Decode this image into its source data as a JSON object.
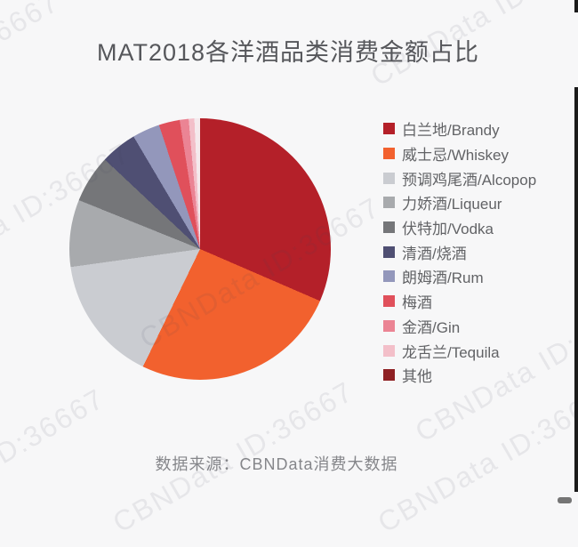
{
  "page": {
    "background": "#F7F7F8"
  },
  "watermark": {
    "text": "CBNData ID:36667"
  },
  "chart_data": {
    "type": "pie",
    "title": "MAT2018各洋酒品类消费金额占比",
    "source_note": "数据来源：CBNData消费大数据",
    "legend_position": "right",
    "start_angle": "top",
    "direction": "clockwise",
    "unit": "percent",
    "slices": [
      {
        "label": "白兰地/Brandy",
        "percent": 31.5,
        "color": "#B42029"
      },
      {
        "label": "威士忌/Whiskey",
        "percent": 25.7,
        "color": "#F2612E"
      },
      {
        "label": "预调鸡尾酒/Alcopop",
        "percent": 15.6,
        "color": "#CACCD1"
      },
      {
        "label": "力娇酒/Liqueur",
        "percent": 8.3,
        "color": "#A8AAAD"
      },
      {
        "label": "伏特加/Vodka",
        "percent": 5.9,
        "color": "#757679"
      },
      {
        "label": "清酒/烧酒",
        "percent": 4.5,
        "color": "#4F4F73"
      },
      {
        "label": "朗姆酒/Rum",
        "percent": 3.4,
        "color": "#9397BB"
      },
      {
        "label": "梅酒",
        "percent": 2.6,
        "color": "#E0505B"
      },
      {
        "label": "金酒/Gin",
        "percent": 1.1,
        "color": "#EB8494"
      },
      {
        "label": "龙舌兰/Tequila",
        "percent": 0.7,
        "color": "#F3BFC9"
      },
      {
        "label": "其他",
        "percent": 0.7,
        "color": "#8E2023",
        "pie_color": "#F5EAED"
      }
    ]
  },
  "colors": {
    "title_text": "#56575B",
    "legend_text": "#626366",
    "footer_text": "#85868A",
    "right_border": "#1B1B1B"
  }
}
